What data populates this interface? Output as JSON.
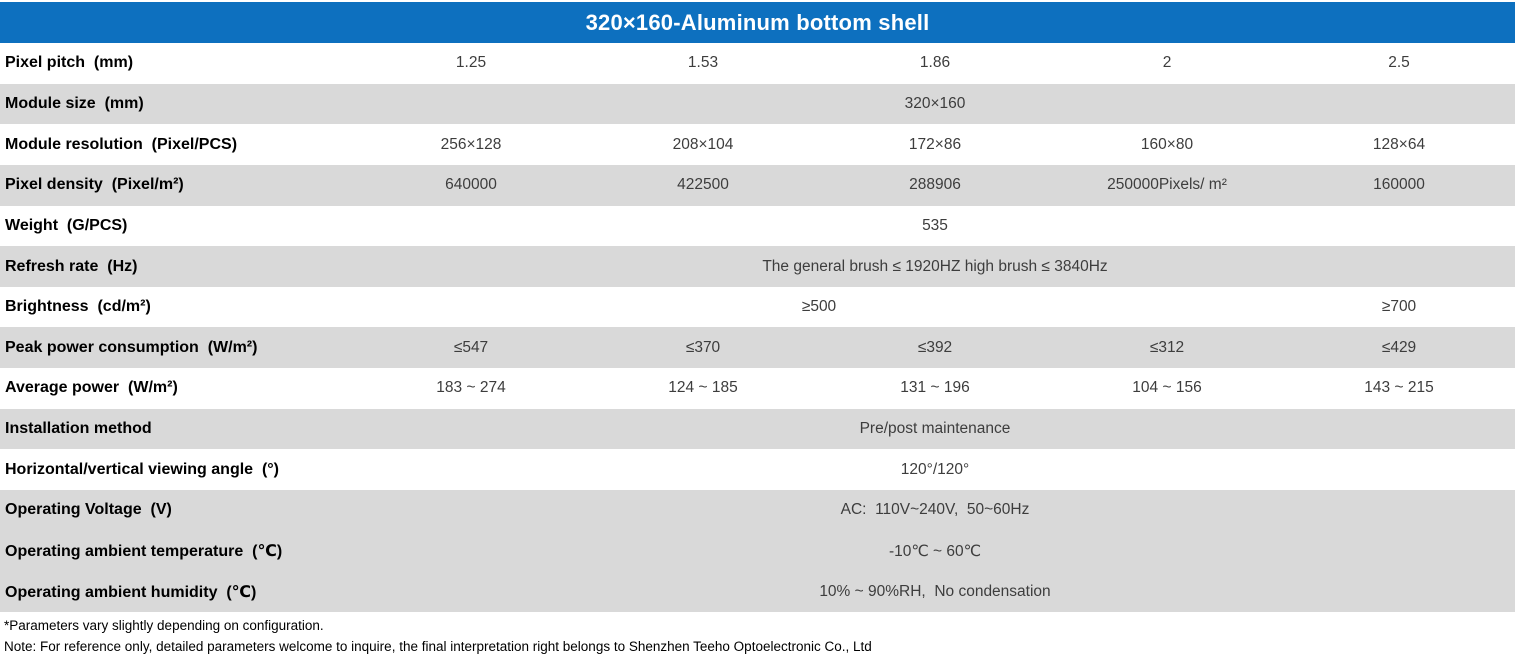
{
  "title": "320×160-Aluminum bottom shell",
  "colors": {
    "header_bg": "#0d70bf",
    "row_shade_bg": "#d9d9d9",
    "title_text": "#ffffff",
    "label_text": "#000000",
    "value_text": "#3d3d3d"
  },
  "table": {
    "rows": [
      {
        "label": "Pixel pitch  (mm)",
        "type": "cols",
        "shade": false,
        "values": [
          "1.25",
          "1.53",
          "1.86",
          "2",
          "2.5"
        ]
      },
      {
        "label": "Module size  (mm)",
        "type": "merged",
        "shade": true,
        "value": "320×160"
      },
      {
        "label": "Module resolution  (Pixel/PCS)",
        "type": "cols",
        "shade": false,
        "values": [
          "256×128",
          "208×104",
          "172×86",
          "160×80",
          "128×64"
        ]
      },
      {
        "label": "Pixel density  (Pixel/m²)",
        "type": "cols",
        "shade": true,
        "values": [
          "640000",
          "422500",
          "288906",
          "250000Pixels/ m²",
          "160000"
        ]
      },
      {
        "label": "Weight  (G/PCS)",
        "type": "merged",
        "shade": false,
        "value": "535"
      },
      {
        "label": "Refresh rate  (Hz)",
        "type": "merged",
        "shade": true,
        "value": "The general brush ≤ 1920HZ high brush ≤ 3840Hz"
      },
      {
        "label": "Brightness  (cd/m²)",
        "type": "split",
        "shade": false,
        "values": [
          "≥500",
          "≥700"
        ]
      },
      {
        "label": "Peak power consumption  (W/m²)",
        "type": "cols",
        "shade": true,
        "values": [
          "≤547",
          "≤370",
          "≤392",
          "≤312",
          "≤429"
        ]
      },
      {
        "label": "Average power  (W/m²)",
        "type": "cols",
        "shade": false,
        "values": [
          "183 ~ 274",
          "124 ~ 185",
          "131 ~ 196",
          "104 ~ 156",
          "143 ~ 215"
        ]
      },
      {
        "label": "Installation method",
        "type": "merged",
        "shade": true,
        "value": "Pre/post maintenance"
      },
      {
        "label": "Horizontal/vertical viewing angle  (°)",
        "type": "merged",
        "shade": false,
        "value": "120°/120°"
      },
      {
        "label": "Operating Voltage  (V)",
        "type": "merged",
        "shade": true,
        "value": "AC:  110V~240V,  50~60Hz"
      },
      {
        "label": "Operating ambient temperature  (℃)",
        "type": "merged",
        "shade": true,
        "value": "-10℃ ~ 60℃"
      },
      {
        "label": "Operating ambient humidity  (℃)",
        "type": "merged",
        "shade": true,
        "value": "10% ~ 90%RH,  No condensation"
      }
    ]
  },
  "footnotes": [
    "*Parameters vary slightly depending on configuration.",
    "Note: For reference only, detailed parameters welcome to inquire, the final interpretation right belongs to Shenzhen Teeho Optoelectronic Co., Ltd"
  ]
}
